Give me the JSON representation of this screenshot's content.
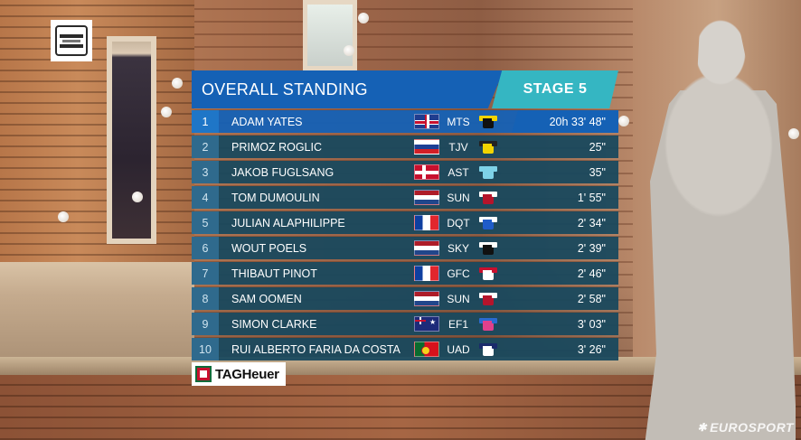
{
  "header": {
    "title": "OVERALL STANDING",
    "stage": "STAGE 5"
  },
  "standings": [
    {
      "rank": "1",
      "name": "ADAM YATES",
      "flag": "gbr",
      "team": "MTS",
      "jersey": [
        "#111111",
        "#f2d400"
      ],
      "time": "20h 33' 48\""
    },
    {
      "rank": "2",
      "name": "PRIMOZ ROGLIC",
      "flag": "slo",
      "team": "TJV",
      "jersey": [
        "#f2d400",
        "#222222"
      ],
      "time": "25\""
    },
    {
      "rank": "3",
      "name": "JAKOB FUGLSANG",
      "flag": "den",
      "team": "AST",
      "jersey": [
        "#7ed2e8",
        "#7ed2e8"
      ],
      "time": "35\""
    },
    {
      "rank": "4",
      "name": "TOM DUMOULIN",
      "flag": "ned",
      "team": "SUN",
      "jersey": [
        "#b5142b",
        "#ffffff"
      ],
      "time": "1' 55\""
    },
    {
      "rank": "5",
      "name": "JULIAN ALAPHILIPPE",
      "flag": "fra",
      "team": "DQT",
      "jersey": [
        "#1f5cc9",
        "#ffffff"
      ],
      "time": "2' 34\""
    },
    {
      "rank": "6",
      "name": "WOUT POELS",
      "flag": "ned",
      "team": "SKY",
      "jersey": [
        "#111111",
        "#ffffff"
      ],
      "time": "2' 39\""
    },
    {
      "rank": "7",
      "name": "THIBAUT PINOT",
      "flag": "fra",
      "team": "GFC",
      "jersey": [
        "#ffffff",
        "#c8102e"
      ],
      "time": "2' 46\""
    },
    {
      "rank": "8",
      "name": "SAM OOMEN",
      "flag": "ned",
      "team": "SUN",
      "jersey": [
        "#b5142b",
        "#ffffff"
      ],
      "time": "2' 58\""
    },
    {
      "rank": "9",
      "name": "SIMON CLARKE",
      "flag": "aus",
      "team": "EF1",
      "jersey": [
        "#e0408c",
        "#2a6ad0"
      ],
      "time": "3' 03\""
    },
    {
      "rank": "10",
      "name": "RUI ALBERTO FARIA DA COSTA",
      "flag": "por",
      "team": "UAD",
      "jersey": [
        "#ffffff",
        "#1a2a6b"
      ],
      "time": "3' 26\""
    }
  ],
  "sponsor": {
    "name": "TAGHeuer"
  },
  "broadcaster": {
    "name": "EUROSPORT"
  },
  "icons": {
    "race_logo": "race-logo-icon",
    "sponsor_logo": "tag-heuer-logo-icon",
    "broadcaster_logo": "eurosport-logo-icon"
  }
}
